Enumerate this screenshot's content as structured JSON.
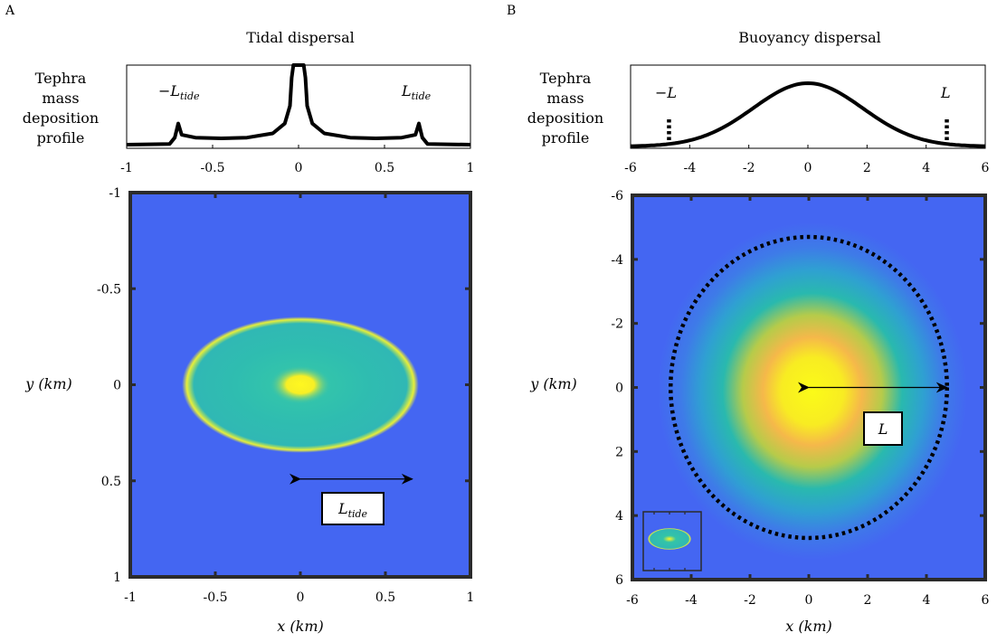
{
  "panels": [
    {
      "letter": "A",
      "title": "Tidal dispersal"
    },
    {
      "letter": "B",
      "title": "Buoyancy dispersal"
    }
  ],
  "profile_label": [
    "Tephra",
    "mass",
    "deposition",
    "profile"
  ],
  "colors": {
    "background": "#4466f2",
    "mid": "#1fb6b0",
    "high": "#f7f71a",
    "peak": "#f5b84a",
    "frame": "#2b2b2b"
  },
  "chart_data": [
    {
      "type": "line",
      "title": "Tidal dispersal",
      "ylabel": "Tephra mass deposition profile",
      "xlim": [
        -1,
        1
      ],
      "xticks": [
        -1,
        -0.5,
        0,
        0.5,
        1
      ],
      "xtick_labels": [
        "-1",
        "-0.5",
        "0",
        "0.5",
        "1"
      ],
      "x": [
        -1,
        -0.75,
        -0.72,
        -0.7,
        -0.68,
        -0.6,
        -0.45,
        -0.3,
        -0.15,
        -0.08,
        -0.05,
        -0.04,
        -0.03,
        0.03,
        0.04,
        0.05,
        0.08,
        0.15,
        0.3,
        0.45,
        0.6,
        0.68,
        0.7,
        0.72,
        0.75,
        1
      ],
      "y": [
        0,
        0.01,
        0.1,
        0.3,
        0.14,
        0.1,
        0.09,
        0.1,
        0.16,
        0.3,
        0.55,
        0.95,
        1.3,
        1.3,
        0.95,
        0.55,
        0.3,
        0.16,
        0.1,
        0.09,
        0.1,
        0.14,
        0.3,
        0.1,
        0.01,
        0
      ],
      "annotations": [
        {
          "text": "−L",
          "sub": "tide"
        },
        {
          "text": "L",
          "sub": "tide"
        }
      ]
    },
    {
      "type": "line",
      "title": "Buoyancy dispersal",
      "ylabel": "Tephra mass deposition profile",
      "xlim": [
        -6,
        6
      ],
      "xticks": [
        -6,
        -4,
        -2,
        0,
        2,
        4,
        6
      ],
      "xtick_labels": [
        "-6",
        "-4",
        "-2",
        "0",
        "2",
        "4",
        "6"
      ],
      "curve": {
        "shape": "gaussian",
        "sigma": 1.85
      },
      "markers": [
        -4.7,
        4.7
      ],
      "annotations": [
        {
          "text": "−L",
          "sub": ""
        },
        {
          "text": "L",
          "sub": ""
        }
      ]
    },
    {
      "type": "heatmap",
      "xlabel": "x (km)",
      "ylabel": "y (km)",
      "xlim": [
        -1,
        1
      ],
      "ylim": [
        -1,
        1
      ],
      "xticks": [
        -1,
        -0.5,
        0,
        0.5,
        1
      ],
      "xtick_labels": [
        "-1",
        "-0.5",
        "0",
        "0.5",
        "1"
      ],
      "yticks": [
        -1,
        -0.5,
        0,
        0.5,
        1
      ],
      "ytick_labels": [
        "-1",
        "-0.5",
        "0",
        "0.5",
        "1"
      ],
      "y_reversed": true,
      "ellipse": {
        "cx": 0,
        "cy": 0,
        "rx": 0.68,
        "ry": 0.34
      },
      "arrow": {
        "from": [
          0,
          0.5
        ],
        "to": [
          0.68,
          0.5
        ]
      },
      "arrow_label": {
        "text": "L",
        "sub": "tide"
      }
    },
    {
      "type": "heatmap",
      "xlabel": "x (km)",
      "ylabel": "y (km)",
      "xlim": [
        -6,
        6
      ],
      "ylim": [
        -6,
        6
      ],
      "xticks": [
        -6,
        -4,
        -2,
        0,
        2,
        4,
        6
      ],
      "xtick_labels": [
        "-6",
        "-4",
        "-2",
        "0",
        "2",
        "4",
        "6"
      ],
      "yticks": [
        -6,
        -4,
        -2,
        0,
        2,
        4,
        6
      ],
      "ytick_labels": [
        "-6",
        "-4",
        "-2",
        "0",
        "2",
        "4",
        "6"
      ],
      "y_reversed": true,
      "dotted_circle_radius": 4.7,
      "arrow": {
        "from": [
          0,
          0
        ],
        "to": [
          4.7,
          0
        ]
      },
      "arrow_label": {
        "text": "L",
        "sub": ""
      },
      "inset": {
        "shows": "tidal dispersal map"
      }
    }
  ]
}
